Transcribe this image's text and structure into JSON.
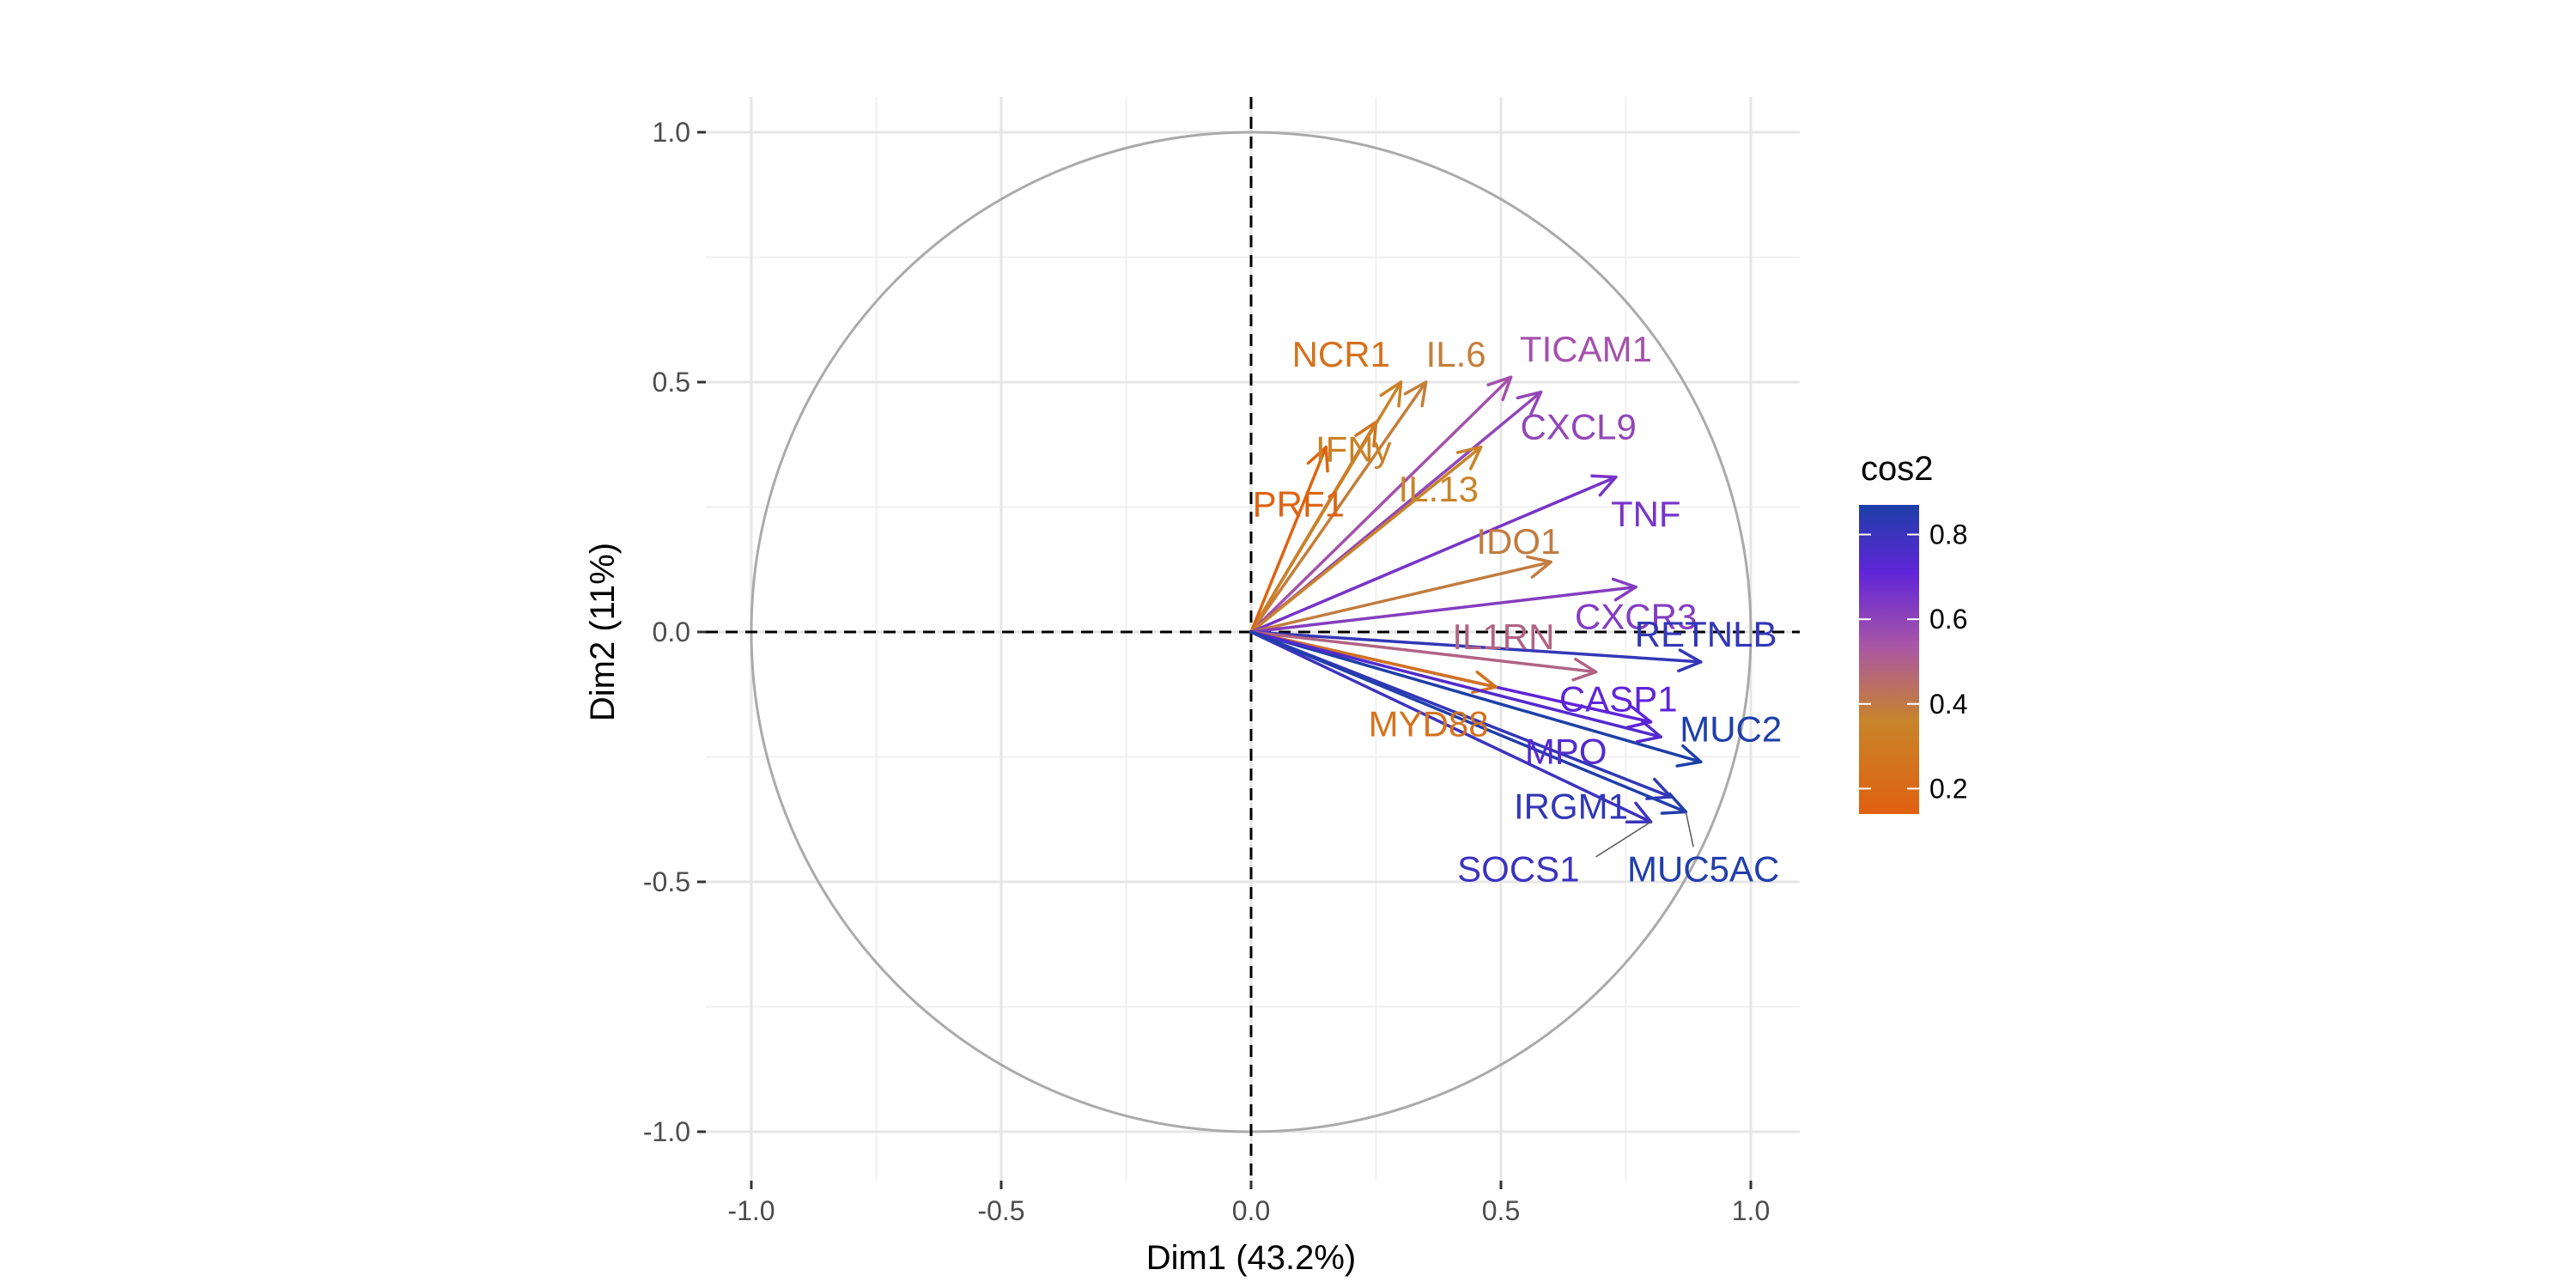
{
  "chart_data": {
    "type": "scatter",
    "subtype": "pca-variable-correlation-circle",
    "title": "",
    "xlabel": "Dim1 (43.2%)",
    "ylabel": "Dim2 (11%)",
    "xlim": [
      -1.0,
      1.0
    ],
    "ylim": [
      -1.0,
      1.0
    ],
    "x_ticks": [
      -1.0,
      -0.5,
      0.0,
      0.5,
      1.0
    ],
    "y_ticks": [
      -1.0,
      -0.5,
      0.0,
      0.5,
      1.0
    ],
    "x_tick_labels": [
      "-1.0",
      "-0.5",
      "0.0",
      "0.5",
      "1.0"
    ],
    "y_tick_labels": [
      "-1.0",
      "-0.5",
      "0.0",
      "0.5",
      "1.0"
    ],
    "grid": true,
    "unit_circle": true,
    "legend": {
      "title": "cos2",
      "placement": "right",
      "ticks": [
        0.8,
        0.6,
        0.4,
        0.2
      ],
      "tick_labels": [
        "0.8",
        "0.6",
        "0.4",
        "0.2"
      ],
      "range": [
        0.14,
        0.87
      ],
      "gradient_colors": [
        "#e06010",
        "#c8842a",
        "#a855a8",
        "#6025d8",
        "#1d3fa8"
      ]
    },
    "variables": [
      {
        "name": "NCR1",
        "x": 0.25,
        "y": 0.42,
        "cos2": 0.24
      },
      {
        "name": "IL.6",
        "x": 0.35,
        "y": 0.5,
        "cos2": 0.37
      },
      {
        "name": "TICAM1",
        "x": 0.52,
        "y": 0.51,
        "cos2": 0.53
      },
      {
        "name": "IFNy",
        "x": 0.3,
        "y": 0.5,
        "cos2": 0.34
      },
      {
        "name": "CXCL9",
        "x": 0.58,
        "y": 0.48,
        "cos2": 0.57
      },
      {
        "name": "PRF1",
        "x": 0.15,
        "y": 0.37,
        "cos2": 0.16
      },
      {
        "name": "IL.13",
        "x": 0.46,
        "y": 0.37,
        "cos2": 0.35
      },
      {
        "name": "TNF",
        "x": 0.73,
        "y": 0.31,
        "cos2": 0.63
      },
      {
        "name": "IDO1",
        "x": 0.6,
        "y": 0.14,
        "cos2": 0.38
      },
      {
        "name": "CXCR3",
        "x": 0.77,
        "y": 0.09,
        "cos2": 0.6
      },
      {
        "name": "RETNLB",
        "x": 0.9,
        "y": -0.06,
        "cos2": 0.81
      },
      {
        "name": "IL1RN",
        "x": 0.69,
        "y": -0.08,
        "cos2": 0.47
      },
      {
        "name": "CASP1",
        "x": 0.8,
        "y": -0.18,
        "cos2": 0.68
      },
      {
        "name": "MYD88",
        "x": 0.49,
        "y": -0.11,
        "cos2": 0.25
      },
      {
        "name": "MUC2",
        "x": 0.9,
        "y": -0.26,
        "cos2": 0.87
      },
      {
        "name": "MPO",
        "x": 0.82,
        "y": -0.21,
        "cos2": 0.72
      },
      {
        "name": "IRGM1",
        "x": 0.84,
        "y": -0.33,
        "cos2": 0.81
      },
      {
        "name": "SOCS1",
        "x": 0.8,
        "y": -0.38,
        "cos2": 0.78
      },
      {
        "name": "MUC5AC",
        "x": 0.87,
        "y": -0.36,
        "cos2": 0.86
      }
    ],
    "labels": [
      {
        "name": "NCR1",
        "x": 0.18,
        "y": 0.555,
        "anchor": "middle"
      },
      {
        "name": "IL.6",
        "x": 0.41,
        "y": 0.555,
        "anchor": "middle"
      },
      {
        "name": "TICAM1",
        "x": 0.67,
        "y": 0.565,
        "anchor": "middle"
      },
      {
        "name": "IFNy",
        "x": 0.205,
        "y": 0.365,
        "anchor": "middle"
      },
      {
        "name": "CXCL9",
        "x": 0.655,
        "y": 0.41,
        "anchor": "middle"
      },
      {
        "name": "PRF1",
        "x": 0.095,
        "y": 0.255,
        "anchor": "middle"
      },
      {
        "name": "IL.13",
        "x": 0.375,
        "y": 0.285,
        "anchor": "middle"
      },
      {
        "name": "TNF",
        "x": 0.79,
        "y": 0.235,
        "anchor": "middle"
      },
      {
        "name": "IDO1",
        "x": 0.535,
        "y": 0.18,
        "anchor": "middle"
      },
      {
        "name": "CXCR3",
        "x": 0.77,
        "y": 0.03,
        "anchor": "middle"
      },
      {
        "name": "RETNLB",
        "x": 0.91,
        "y": -0.005,
        "anchor": "middle"
      },
      {
        "name": "IL1RN",
        "x": 0.505,
        "y": -0.01,
        "anchor": "middle"
      },
      {
        "name": "CASP1",
        "x": 0.735,
        "y": -0.135,
        "anchor": "middle"
      },
      {
        "name": "MYD88",
        "x": 0.355,
        "y": -0.185,
        "anchor": "middle"
      },
      {
        "name": "MUC2",
        "x": 0.96,
        "y": -0.195,
        "anchor": "middle"
      },
      {
        "name": "MPO",
        "x": 0.63,
        "y": -0.24,
        "anchor": "middle"
      },
      {
        "name": "IRGM1",
        "x": 0.64,
        "y": -0.35,
        "anchor": "middle"
      },
      {
        "name": "SOCS1",
        "x": 0.535,
        "y": -0.475,
        "anchor": "middle"
      },
      {
        "name": "MUC5AC",
        "x": 0.905,
        "y": -0.475,
        "anchor": "middle"
      }
    ]
  }
}
